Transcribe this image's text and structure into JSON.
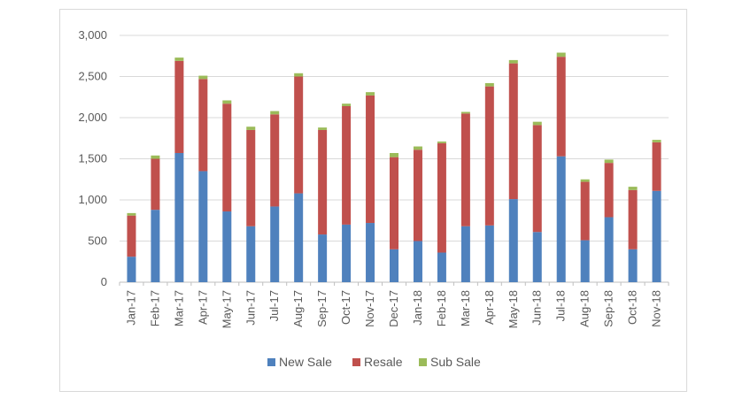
{
  "chart_data": {
    "type": "bar",
    "stacked": true,
    "title": "",
    "xlabel": "",
    "ylabel": "",
    "ylim": [
      0,
      3000
    ],
    "yticks": [
      0,
      500,
      1000,
      1500,
      2000,
      2500,
      3000
    ],
    "ytick_labels": [
      "0",
      "500",
      "1,000",
      "1,500",
      "2,000",
      "2,500",
      "3,000"
    ],
    "grid": true,
    "legend_position": "bottom",
    "categories": [
      "Jan-17",
      "Feb-17",
      "Mar-17",
      "Apr-17",
      "May-17",
      "Jun-17",
      "Jul-17",
      "Aug-17",
      "Sep-17",
      "Oct-17",
      "Nov-17",
      "Dec-17",
      "Jan-18",
      "Feb-18",
      "Mar-18",
      "Apr-18",
      "May-18",
      "Jun-18",
      "Jul-18",
      "Aug-18",
      "Sep-18",
      "Oct-18",
      "Nov-18"
    ],
    "series": [
      {
        "name": "New Sale",
        "color": "#4f81bd",
        "values": [
          310,
          880,
          1570,
          1350,
          860,
          680,
          920,
          1080,
          580,
          700,
          720,
          400,
          500,
          360,
          680,
          690,
          1010,
          610,
          1530,
          510,
          790,
          400,
          1110
        ]
      },
      {
        "name": "Resale",
        "color": "#c0504d",
        "values": [
          500,
          620,
          1120,
          1120,
          1310,
          1170,
          1120,
          1420,
          1270,
          1440,
          1550,
          1120,
          1110,
          1330,
          1370,
          1690,
          1650,
          1300,
          1210,
          710,
          660,
          720,
          590
        ]
      },
      {
        "name": "Sub Sale",
        "color": "#9bbb59",
        "values": [
          30,
          40,
          40,
          40,
          40,
          40,
          40,
          40,
          30,
          30,
          40,
          50,
          40,
          20,
          20,
          40,
          40,
          40,
          50,
          30,
          40,
          40,
          30
        ]
      }
    ]
  }
}
